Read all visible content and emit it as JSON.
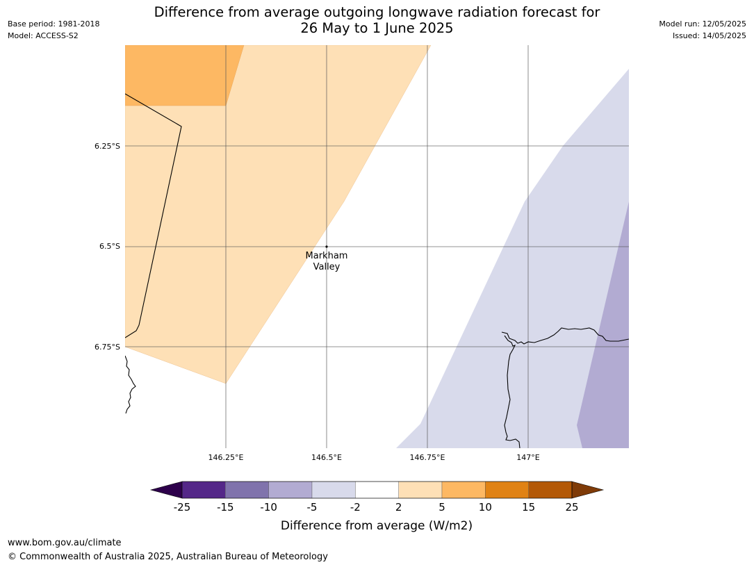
{
  "title": {
    "line1": "Difference from average outgoing longwave radiation forecast for",
    "line2": "26 May to 1 June 2025"
  },
  "meta_left": {
    "base_period": "Base period: 1981-2018",
    "model": "Model: ACCESS-S2"
  },
  "meta_right": {
    "model_run": "Model run: 12/05/2025",
    "issued": "Issued: 14/05/2025"
  },
  "map": {
    "lat_labels": [
      "6.25°S",
      "6.5°S",
      "6.75°S"
    ],
    "lon_labels": [
      "146.25°E",
      "146.5°E",
      "146.75°E",
      "147°E"
    ],
    "location": {
      "name_line1": "Markham",
      "name_line2": "Valley"
    }
  },
  "colorbar": {
    "title": "Difference from average (W/m2)",
    "ticks": [
      "-25",
      "-15",
      "-10",
      "-5",
      "-2",
      "2",
      "5",
      "10",
      "15",
      "25"
    ],
    "colors": {
      "below_min": "#2d004b",
      "bins": [
        "#542788",
        "#8073ac",
        "#b2abd2",
        "#d8daeb",
        "#ffffff",
        "#fee0b6",
        "#fdb863",
        "#e08214",
        "#b35806"
      ],
      "above_max": "#7f3b08"
    }
  },
  "footer": {
    "url": "www.bom.gov.au/climate",
    "copyright": "© Commonwealth of Australia 2025, Australian Bureau of Meteorology"
  }
}
